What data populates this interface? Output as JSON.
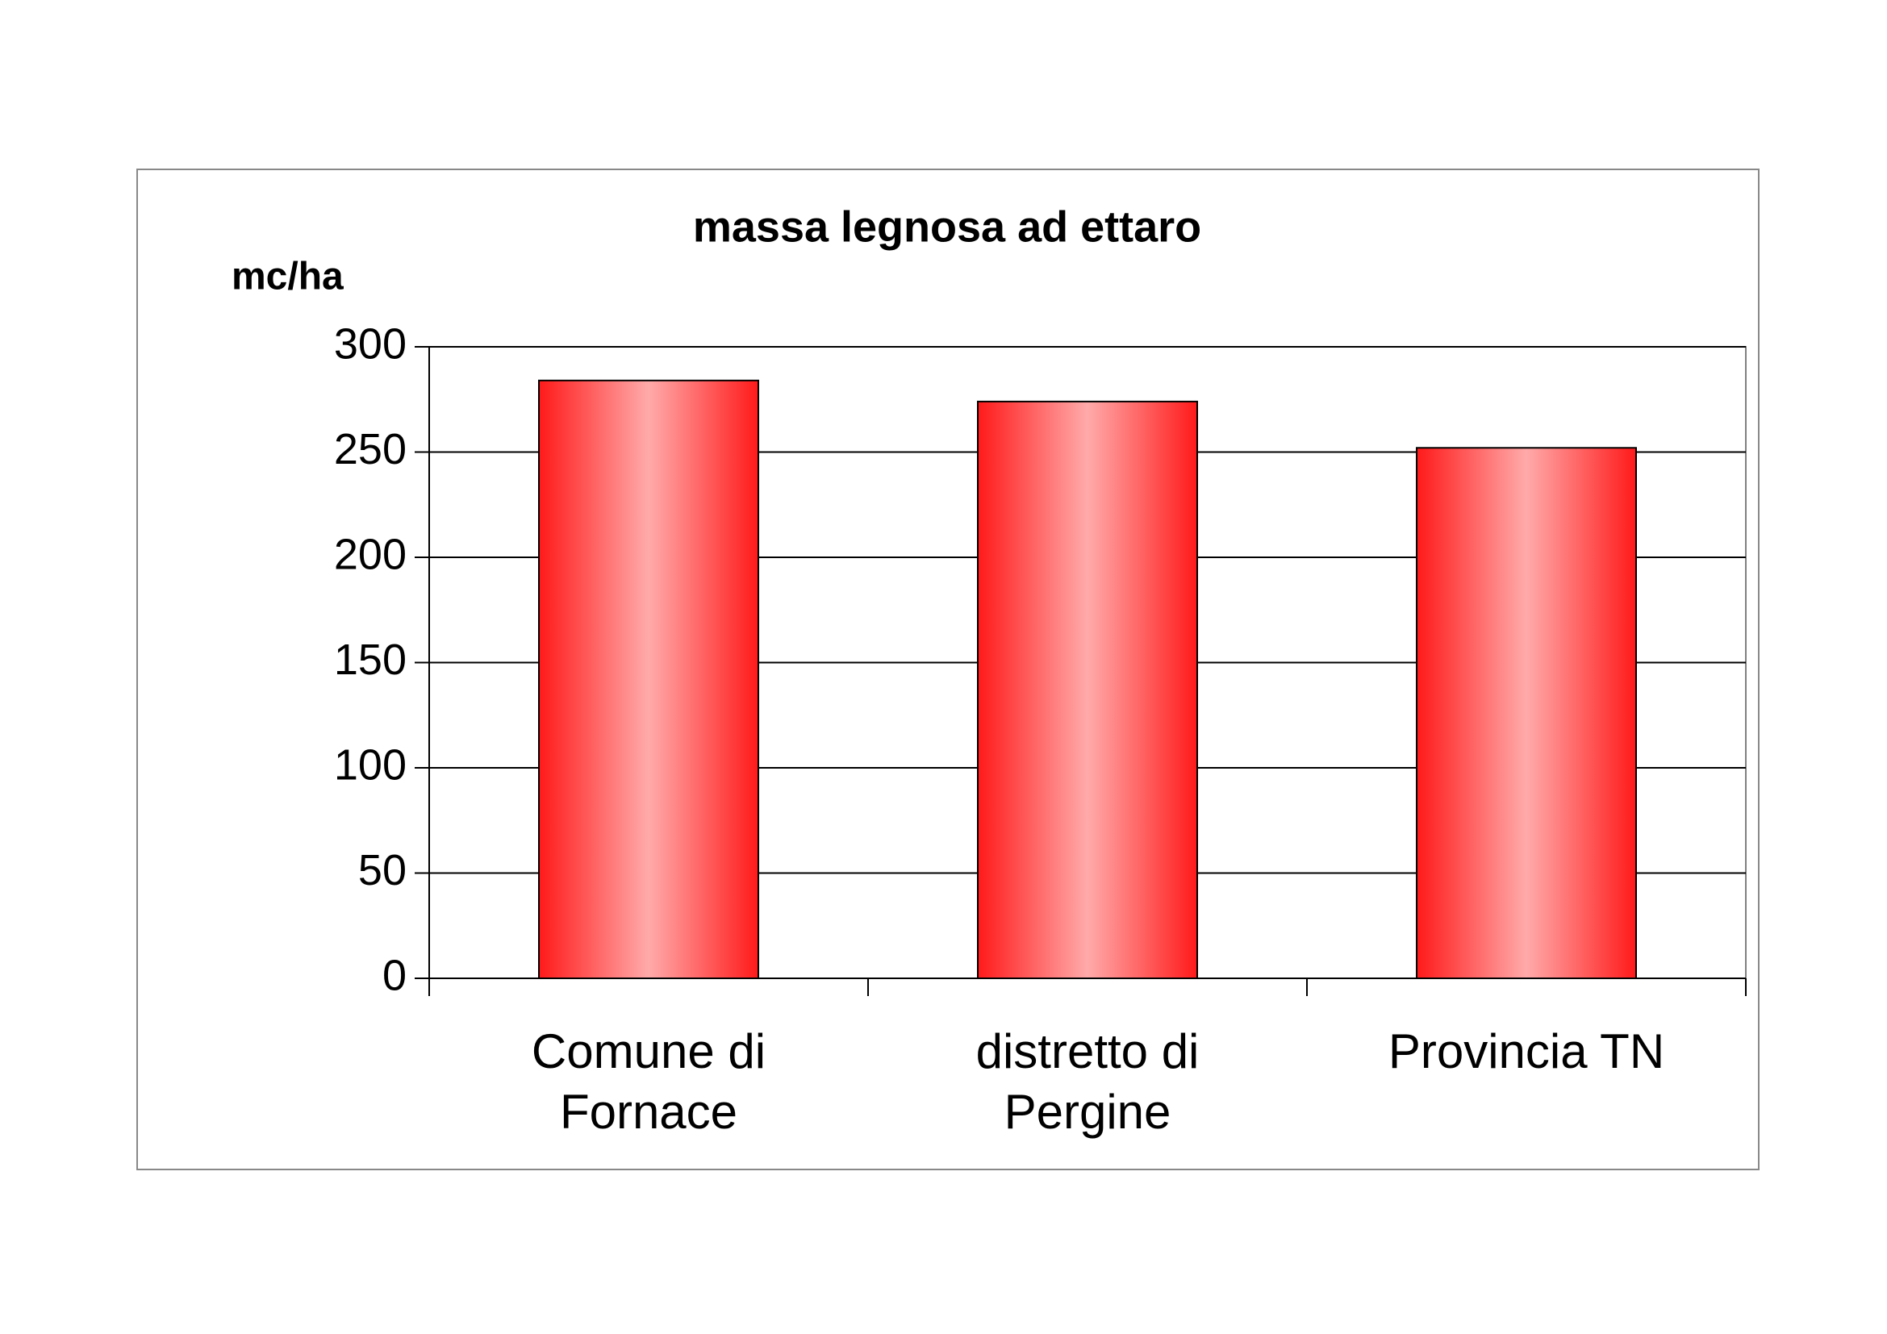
{
  "chart_data": {
    "type": "bar",
    "title": "massa legnosa ad ettaro",
    "y_axis_label": "mc/ha",
    "categories": [
      "Comune di Fornace",
      "distretto di Pergine",
      "Provincia TN"
    ],
    "values": [
      284,
      274,
      252
    ],
    "color": "#ff2020",
    "ylim": [
      0,
      300
    ],
    "yticks": [
      0,
      50,
      100,
      150,
      200,
      250,
      300
    ],
    "grid": true
  }
}
